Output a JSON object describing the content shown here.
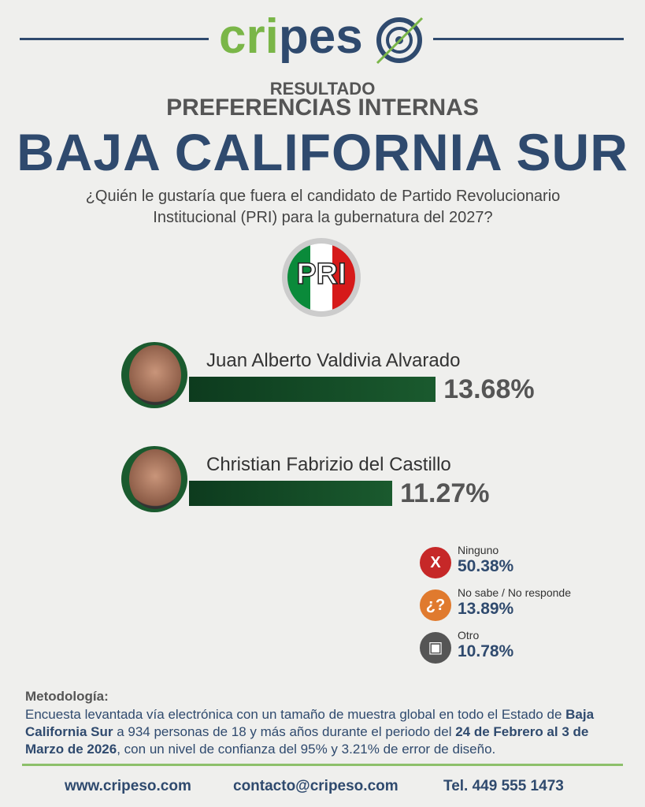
{
  "logo": {
    "green": "cri",
    "blue": "pes"
  },
  "header": {
    "kicker": "RESULTADO",
    "subtitle": "PREFERENCIAS INTERNAS",
    "title": "BAJA CALIFORNIA SUR",
    "question": "¿Quién le gustaría que fuera el candidato de Partido Revolucionario Institucional (PRI) para la gubernatura del 2027?",
    "party": "PRI"
  },
  "chart_data": {
    "type": "bar",
    "categories": [
      "Juan Alberto Valdivia Alvarado",
      "Christian Fabrizio del Castillo"
    ],
    "values": [
      13.68,
      11.27
    ],
    "value_labels": [
      "13.68%",
      "11.27%"
    ],
    "color": "#1a5a2e"
  },
  "other_answers": {
    "categories": [
      "Ninguno",
      "No sabe / No responde",
      "Otro"
    ],
    "values": [
      50.38,
      13.89,
      10.78
    ],
    "value_labels": [
      "50.38%",
      "13.89%",
      "10.78%"
    ],
    "icons": [
      "X",
      "¿?",
      "▣"
    ],
    "colors": [
      "#c62828",
      "#e07a2e",
      "#555555"
    ]
  },
  "methodology": {
    "heading": "Metodología:",
    "segments": [
      {
        "text": "Encuesta levantada vía electrónica con un tamaño de muestra global en todo el Estado de ",
        "bold": false
      },
      {
        "text": "Baja California Sur",
        "bold": true
      },
      {
        "text": " a 934 personas de 18 y más años durante el periodo del ",
        "bold": false
      },
      {
        "text": "24 de Febrero al 3 de Marzo de 2026",
        "bold": true
      },
      {
        "text": ", con un nivel de confianza del 95% y 3.21% de error de diseño.",
        "bold": false
      }
    ]
  },
  "footer": [
    "www.cripeso.com",
    "contacto@cripeso.com",
    "Tel. 449 555 1473"
  ]
}
